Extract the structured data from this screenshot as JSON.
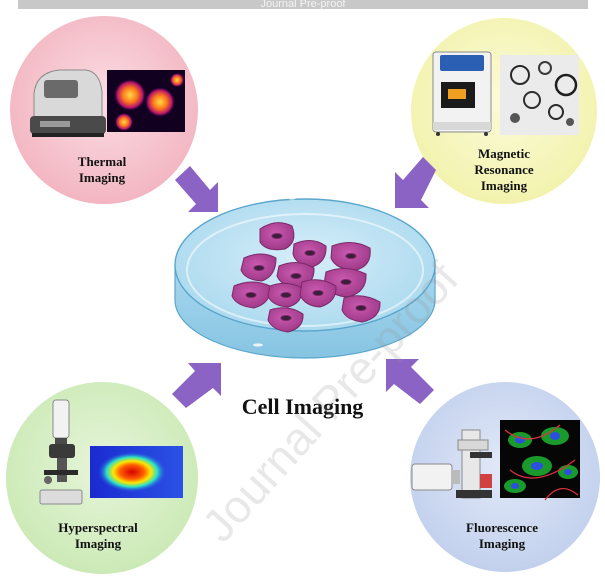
{
  "banner": {
    "text": "Journal Pre-proof"
  },
  "center": {
    "title": "Cell Imaging"
  },
  "watermark": {
    "text": "Journal Pre-proof"
  },
  "nodes": {
    "thermal": {
      "line1": "Thermal",
      "line2": "Imaging",
      "color": "#f3b8c4"
    },
    "magnetic": {
      "line1": "Magnetic",
      "line2": "Resonance",
      "line3": "Imaging",
      "color": "#f3f3b0"
    },
    "hyperspectral": {
      "line1": "Hyperspectral",
      "line2": "Imaging",
      "color": "#cdeab8"
    },
    "fluorescence": {
      "line1": "Fluorescence",
      "line2": "Imaging",
      "color": "#c4d2ee"
    }
  },
  "colors": {
    "arrow": "#8a63c4",
    "dish": "#bfe4f4",
    "cell": "#b54699",
    "nucleus": "#3a1f3a"
  }
}
